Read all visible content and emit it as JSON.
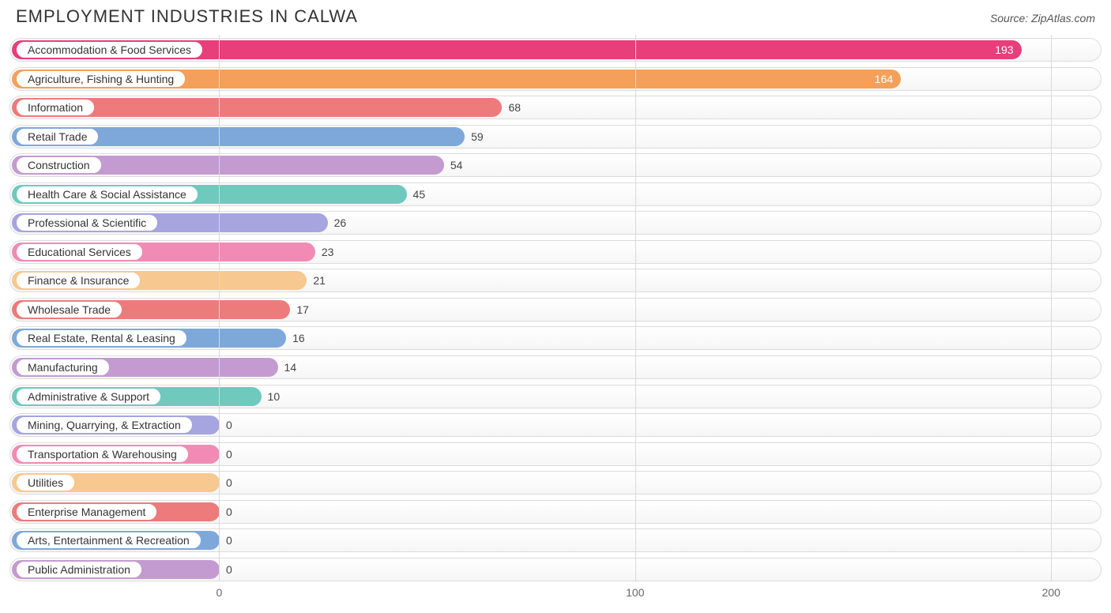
{
  "header": {
    "title": "EMPLOYMENT INDUSTRIES IN CALWA",
    "source": "Source: ZipAtlas.com"
  },
  "chart": {
    "type": "bar-horizontal",
    "max_value": 210,
    "plot_left_pct": 19.2,
    "plot_width_pct": 80.0,
    "row_bg_gradient": [
      "#ffffff",
      "#f6f6f6"
    ],
    "row_border_color": "#dcdcdc",
    "grid_color": "#d9d9d9",
    "title_color": "#333333",
    "title_fontsize": 22,
    "label_fontsize": 14,
    "value_label_color": "#444444",
    "x_ticks": [
      {
        "value": 0,
        "label": "0"
      },
      {
        "value": 100,
        "label": "100"
      },
      {
        "value": 200,
        "label": "200"
      }
    ],
    "bars": [
      {
        "label": "Accommodation & Food Services",
        "value": 193,
        "color": "#e83e7a",
        "value_inside": true
      },
      {
        "label": "Agriculture, Fishing & Hunting",
        "value": 164,
        "color": "#f5a05a",
        "value_inside": true
      },
      {
        "label": "Information",
        "value": 68,
        "color": "#ed7b7b",
        "value_inside": false
      },
      {
        "label": "Retail Trade",
        "value": 59,
        "color": "#7ea8d9",
        "value_inside": false
      },
      {
        "label": "Construction",
        "value": 54,
        "color": "#c49bd1",
        "value_inside": false
      },
      {
        "label": "Health Care & Social Assistance",
        "value": 45,
        "color": "#6fc9bd",
        "value_inside": false
      },
      {
        "label": "Professional & Scientific",
        "value": 26,
        "color": "#a6a5df",
        "value_inside": false
      },
      {
        "label": "Educational Services",
        "value": 23,
        "color": "#f28ab6",
        "value_inside": false
      },
      {
        "label": "Finance & Insurance",
        "value": 21,
        "color": "#f7c88f",
        "value_inside": false
      },
      {
        "label": "Wholesale Trade",
        "value": 17,
        "color": "#ed7b7b",
        "value_inside": false
      },
      {
        "label": "Real Estate, Rental & Leasing",
        "value": 16,
        "color": "#7ea8d9",
        "value_inside": false
      },
      {
        "label": "Manufacturing",
        "value": 14,
        "color": "#c49bd1",
        "value_inside": false
      },
      {
        "label": "Administrative & Support",
        "value": 10,
        "color": "#6fc9bd",
        "value_inside": false
      },
      {
        "label": "Mining, Quarrying, & Extraction",
        "value": 0,
        "color": "#a6a5df",
        "value_inside": false
      },
      {
        "label": "Transportation & Warehousing",
        "value": 0,
        "color": "#f28ab6",
        "value_inside": false
      },
      {
        "label": "Utilities",
        "value": 0,
        "color": "#f7c88f",
        "value_inside": false
      },
      {
        "label": "Enterprise Management",
        "value": 0,
        "color": "#ed7b7b",
        "value_inside": false
      },
      {
        "label": "Arts, Entertainment & Recreation",
        "value": 0,
        "color": "#7ea8d9",
        "value_inside": false
      },
      {
        "label": "Public Administration",
        "value": 0,
        "color": "#c49bd1",
        "value_inside": false
      }
    ]
  }
}
